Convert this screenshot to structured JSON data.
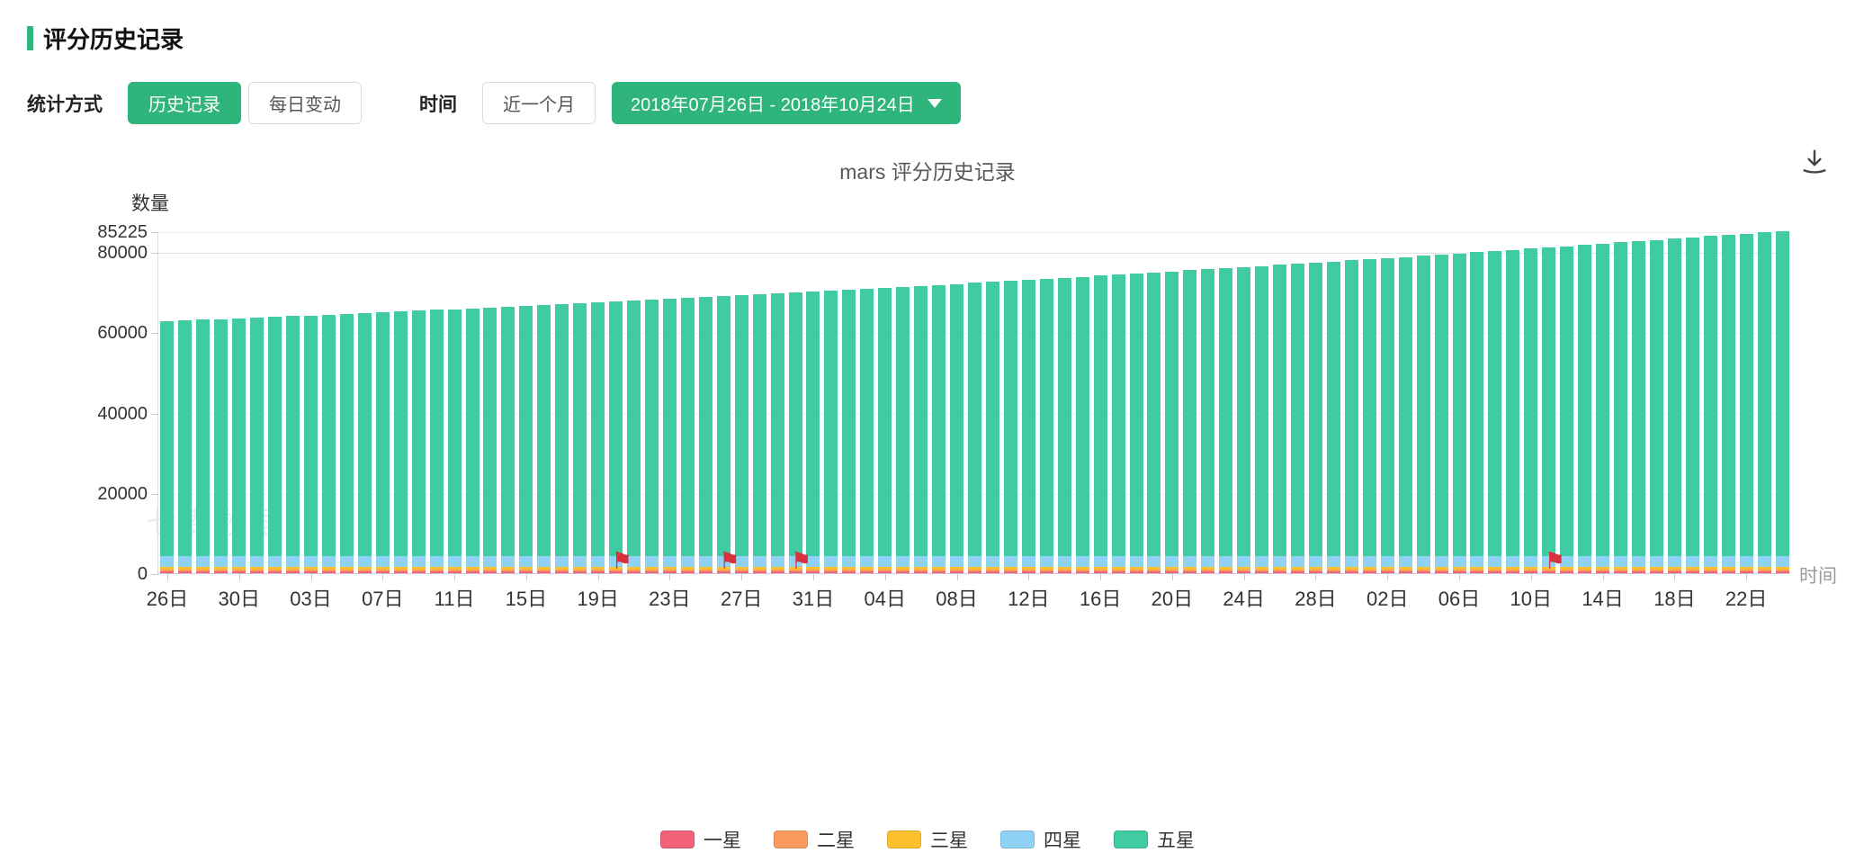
{
  "page": {
    "title": "评分历史记录"
  },
  "controls": {
    "stat_label": "统计方式",
    "history_btn": "历史记录",
    "daily_btn": "每日变动",
    "time_label": "时间",
    "month_btn": "近一个月",
    "date_range": "2018年07月26日 - 2018年10月24日"
  },
  "chart": {
    "title": "mars  评分历史记录",
    "y_axis_name": "数量",
    "x_axis_name": "时间",
    "watermark": "七麦数据"
  },
  "chart_data": {
    "type": "bar",
    "stacked": true,
    "title": "mars 评分历史记录",
    "xlabel": "时间",
    "ylabel": "数量",
    "ylim": [
      0,
      85225
    ],
    "yticks": [
      0,
      20000,
      40000,
      60000,
      80000,
      85225
    ],
    "x_tick_step": 4,
    "x_tick_labels": [
      "26日",
      "30日",
      "03日",
      "07日",
      "11日",
      "15日",
      "19日",
      "23日",
      "27日",
      "31日",
      "04日",
      "08日",
      "12日",
      "16日",
      "20日",
      "24日",
      "28日",
      "02日",
      "06日",
      "10日",
      "14日",
      "18日",
      "22日"
    ],
    "series": [
      {
        "name": "一星",
        "color": "#f2637b",
        "base_value": 350
      },
      {
        "name": "二星",
        "color": "#fa9a5f",
        "base_value": 650
      },
      {
        "name": "三星",
        "color": "#fdc12f",
        "base_value": 650
      },
      {
        "name": "四星",
        "color": "#90d2f5",
        "base_value": 2700
      },
      {
        "name": "五星",
        "color": "#41cba2",
        "base_value": null
      }
    ],
    "totals": [
      62800,
      62976,
      63153,
      63332,
      63513,
      63696,
      63880,
      64066,
      64253,
      64442,
      64633,
      64825,
      65020,
      65215,
      65413,
      65612,
      65812,
      66015,
      66219,
      66425,
      66632,
      66841,
      67052,
      67264,
      67478,
      67694,
      67911,
      68130,
      68351,
      68573,
      68797,
      69023,
      69250,
      69479,
      69710,
      69942,
      70176,
      70412,
      70649,
      70888,
      71129,
      71371,
      71615,
      71861,
      72108,
      72357,
      72608,
      72860,
      73114,
      73370,
      73627,
      73886,
      74147,
      74409,
      74673,
      74939,
      75206,
      75475,
      75746,
      76018,
      76292,
      76568,
      76845,
      77124,
      77405,
      77687,
      77971,
      78257,
      78544,
      78833,
      79124,
      79416,
      79710,
      80006,
      80303,
      80602,
      80903,
      81205,
      81509,
      81815,
      82122,
      82431,
      82742,
      83054,
      83368,
      83684,
      84001,
      84320,
      84641,
      84963,
      85225
    ],
    "flag_indices": [
      25,
      31,
      35,
      77
    ],
    "legend_position": "bottom",
    "grid": true
  }
}
